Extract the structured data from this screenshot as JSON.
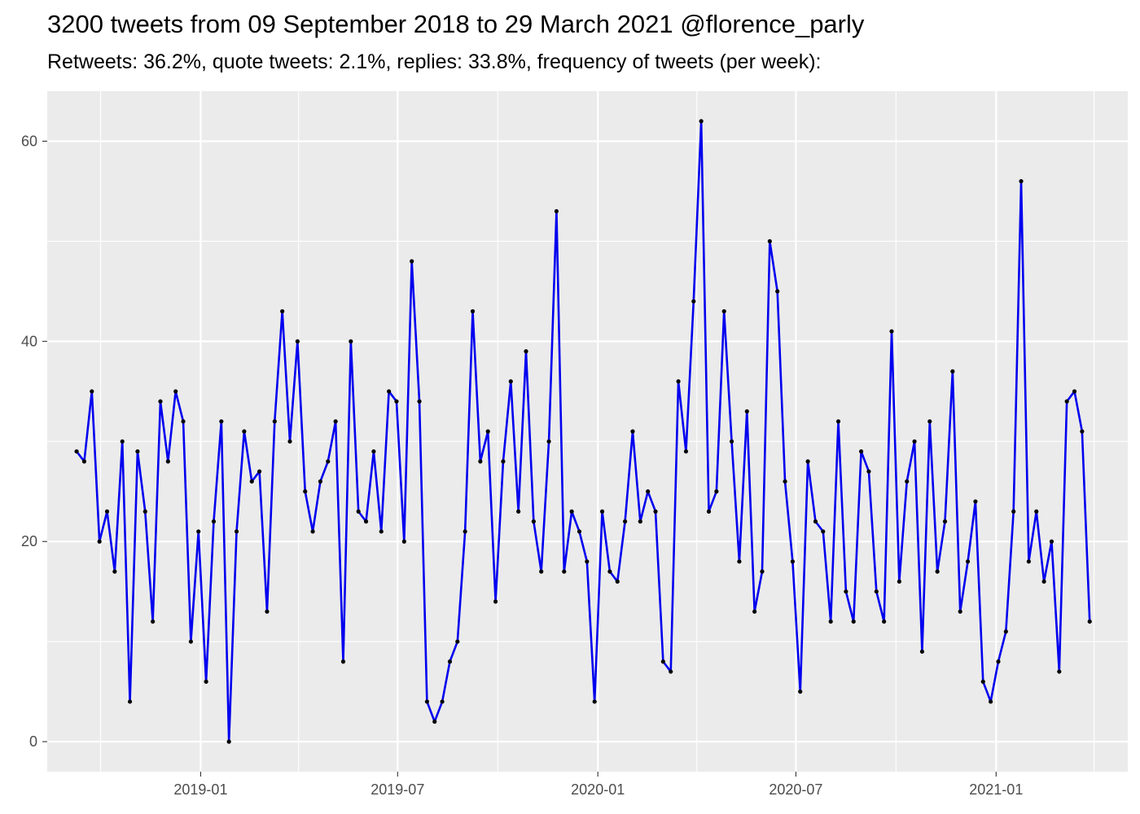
{
  "chart_data": {
    "type": "line",
    "title": "3200 tweets from 09 September 2018 to 29 March 2021 @florence_parly",
    "subtitle": "Retweets: 36.2%, quote tweets: 2.1%, replies: 33.8%, frequency of tweets (per week):",
    "xlabel": "",
    "ylabel": "",
    "ylim": [
      -3,
      65
    ],
    "xlim": [
      "2018-08-13",
      "2021-05-02"
    ],
    "y_ticks": [
      0,
      20,
      40,
      60
    ],
    "x_ticks": [
      {
        "date": "2019-01-01",
        "label": "2019-01"
      },
      {
        "date": "2019-07-01",
        "label": "2019-07"
      },
      {
        "date": "2020-01-01",
        "label": "2020-01"
      },
      {
        "date": "2020-07-01",
        "label": "2020-07"
      },
      {
        "date": "2021-01-01",
        "label": "2021-01"
      }
    ],
    "x_minor_ticks": [
      "2018-10-01",
      "2019-04-01",
      "2019-10-01",
      "2020-04-01",
      "2020-10-01",
      "2021-04-01"
    ],
    "grid": true,
    "background": "#ebebeb",
    "line_color": "#0000ee",
    "point_color": "#000000",
    "series": [
      {
        "x": [
          "2018-09-09",
          "2018-09-16",
          "2018-09-23",
          "2018-09-30",
          "2018-10-07",
          "2018-10-14",
          "2018-10-21",
          "2018-10-28",
          "2018-11-04",
          "2018-11-11",
          "2018-11-18",
          "2018-11-25",
          "2018-12-02",
          "2018-12-09",
          "2018-12-16",
          "2018-12-23",
          "2018-12-30",
          "2019-01-06",
          "2019-01-13",
          "2019-01-20",
          "2019-01-27",
          "2019-02-03",
          "2019-02-10",
          "2019-02-17",
          "2019-02-24",
          "2019-03-03",
          "2019-03-10",
          "2019-03-17",
          "2019-03-24",
          "2019-03-31",
          "2019-04-07",
          "2019-04-14",
          "2019-04-21",
          "2019-04-28",
          "2019-05-05",
          "2019-05-12",
          "2019-05-19",
          "2019-05-26",
          "2019-06-02",
          "2019-06-09",
          "2019-06-16",
          "2019-06-23",
          "2019-06-30",
          "2019-07-07",
          "2019-07-14",
          "2019-07-21",
          "2019-07-28",
          "2019-08-04",
          "2019-08-11",
          "2019-08-18",
          "2019-08-25",
          "2019-09-01",
          "2019-09-08",
          "2019-09-15",
          "2019-09-22",
          "2019-09-29",
          "2019-10-06",
          "2019-10-13",
          "2019-10-20",
          "2019-10-27",
          "2019-11-03",
          "2019-11-10",
          "2019-11-17",
          "2019-11-24",
          "2019-12-01",
          "2019-12-08",
          "2019-12-15",
          "2019-12-22",
          "2019-12-29",
          "2020-01-05",
          "2020-01-12",
          "2020-01-19",
          "2020-01-26",
          "2020-02-02",
          "2020-02-09",
          "2020-02-16",
          "2020-02-23",
          "2020-03-01",
          "2020-03-08",
          "2020-03-15",
          "2020-03-22",
          "2020-03-29",
          "2020-04-05",
          "2020-04-12",
          "2020-04-19",
          "2020-04-26",
          "2020-05-03",
          "2020-05-10",
          "2020-05-17",
          "2020-05-24",
          "2020-05-31",
          "2020-06-07",
          "2020-06-14",
          "2020-06-21",
          "2020-06-28",
          "2020-07-05",
          "2020-07-12",
          "2020-07-19",
          "2020-07-26",
          "2020-08-02",
          "2020-08-09",
          "2020-08-16",
          "2020-08-23",
          "2020-08-30",
          "2020-09-06",
          "2020-09-13",
          "2020-09-20",
          "2020-09-27",
          "2020-10-04",
          "2020-10-11",
          "2020-10-18",
          "2020-10-25",
          "2020-11-01",
          "2020-11-08",
          "2020-11-15",
          "2020-11-22",
          "2020-11-29",
          "2020-12-06",
          "2020-12-13",
          "2020-12-20",
          "2020-12-27",
          "2021-01-03",
          "2021-01-10",
          "2021-01-17",
          "2021-01-24",
          "2021-01-31",
          "2021-02-07",
          "2021-02-14",
          "2021-02-21",
          "2021-02-28",
          "2021-03-07",
          "2021-03-14",
          "2021-03-21",
          "2021-03-28"
        ],
        "y": [
          29,
          28,
          35,
          20,
          23,
          17,
          30,
          4,
          29,
          23,
          12,
          34,
          28,
          35,
          32,
          10,
          21,
          6,
          22,
          32,
          0,
          21,
          31,
          26,
          27,
          13,
          32,
          43,
          30,
          40,
          25,
          21,
          26,
          28,
          32,
          8,
          40,
          23,
          22,
          29,
          21,
          35,
          34,
          20,
          48,
          34,
          4,
          2,
          4,
          8,
          10,
          21,
          43,
          28,
          31,
          14,
          28,
          36,
          23,
          39,
          22,
          17,
          30,
          53,
          17,
          23,
          21,
          18,
          4,
          23,
          17,
          16,
          22,
          31,
          22,
          25,
          23,
          8,
          7,
          36,
          29,
          44,
          62,
          23,
          25,
          43,
          30,
          18,
          33,
          13,
          17,
          50,
          45,
          26,
          18,
          5,
          28,
          22,
          21,
          12,
          32,
          15,
          12,
          29,
          27,
          15,
          12,
          41,
          16,
          26,
          30,
          9,
          32,
          17,
          22,
          37,
          13,
          18,
          24,
          6,
          4,
          8,
          11,
          23,
          56,
          18,
          23,
          16,
          20,
          7,
          34,
          35,
          31,
          12
        ]
      }
    ]
  }
}
